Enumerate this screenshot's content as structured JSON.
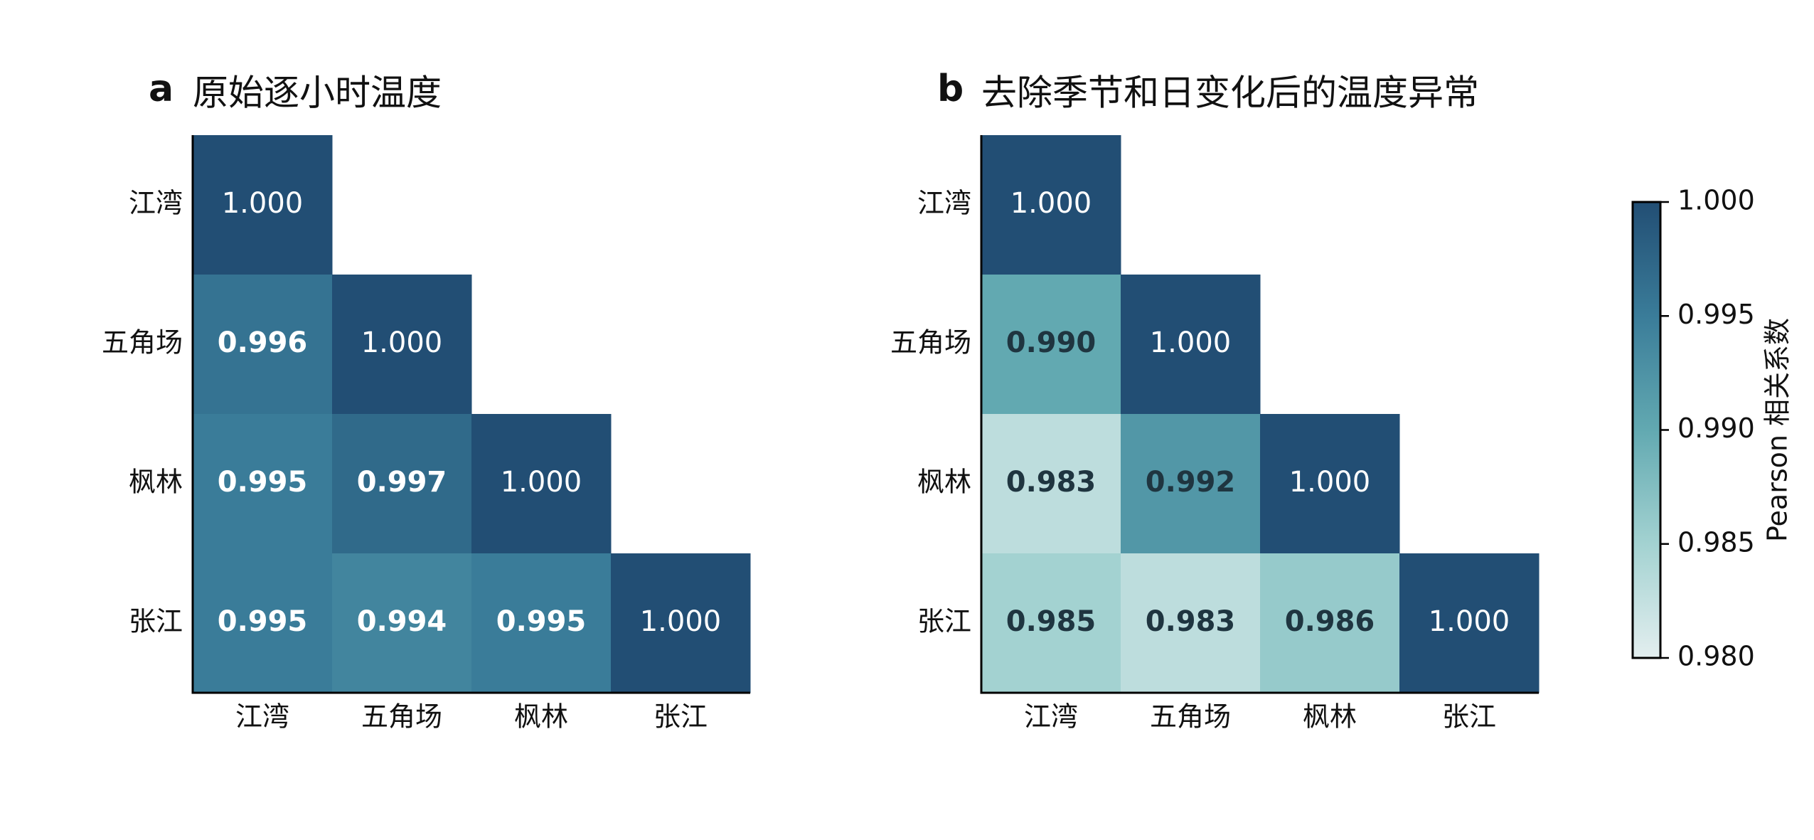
{
  "chart_data": [
    {
      "type": "heatmap",
      "panel": "a",
      "title": "原始逐小时温度",
      "categories": [
        "江湾",
        "五角场",
        "枫林",
        "张江"
      ],
      "values": [
        [
          1,
          null,
          null,
          null
        ],
        [
          0.996,
          1,
          null,
          null
        ],
        [
          0.995,
          0.997,
          1,
          null
        ],
        [
          0.995,
          0.994,
          0.995,
          1
        ]
      ],
      "value_labels": [
        [
          "1.000",
          null,
          null,
          null
        ],
        [
          "0.996",
          "1.000",
          null,
          null
        ],
        [
          "0.995",
          "0.997",
          "1.000",
          null
        ],
        [
          "0.995",
          "0.994",
          "0.995",
          "1.000"
        ]
      ]
    },
    {
      "type": "heatmap",
      "panel": "b",
      "title": "去除季节和日变化后的温度异常",
      "categories": [
        "江湾",
        "五角场",
        "枫林",
        "张江"
      ],
      "values": [
        [
          1,
          null,
          null,
          null
        ],
        [
          0.99,
          1,
          null,
          null
        ],
        [
          0.983,
          0.992,
          1,
          null
        ],
        [
          0.985,
          0.983,
          0.986,
          1
        ]
      ],
      "value_labels": [
        [
          "1.000",
          null,
          null,
          null
        ],
        [
          "0.990",
          "1.000",
          null,
          null
        ],
        [
          "0.983",
          "0.992",
          "1.000",
          null
        ],
        [
          "0.985",
          "0.983",
          "0.986",
          "1.000"
        ]
      ],
      "colorbar": {
        "label": "Pearson 相关系数",
        "lim": [
          0.98,
          1.0
        ],
        "ticks": [
          {
            "value": 0.98,
            "label": "0.980"
          },
          {
            "value": 0.985,
            "label": "0.985"
          },
          {
            "value": 0.99,
            "label": "0.990"
          },
          {
            "value": 0.995,
            "label": "0.995"
          },
          {
            "value": 1.0,
            "label": "1.000"
          }
        ],
        "colormap": [
          "#e3eeef",
          "#a3d2d1",
          "#62a9b1",
          "#3a7c99",
          "#224e74"
        ]
      }
    }
  ]
}
